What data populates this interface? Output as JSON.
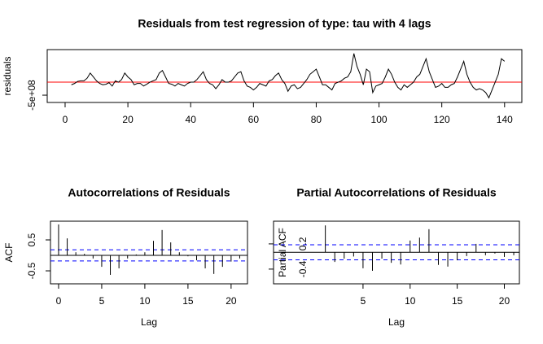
{
  "chart_data": [
    {
      "type": "line",
      "title": "Residuals from test regression of type: tau  with 4 lags",
      "ylabel": "residuals",
      "x": [
        2,
        3,
        4,
        5,
        6,
        7,
        8,
        9,
        10,
        11,
        12,
        13,
        14,
        15,
        16,
        17,
        18,
        19,
        20,
        21,
        22,
        23,
        24,
        25,
        26,
        27,
        28,
        29,
        30,
        31,
        32,
        33,
        34,
        35,
        36,
        37,
        38,
        39,
        40,
        41,
        42,
        43,
        44,
        45,
        46,
        47,
        48,
        49,
        50,
        51,
        52,
        53,
        54,
        55,
        56,
        57,
        58,
        59,
        60,
        61,
        62,
        63,
        64,
        65,
        66,
        67,
        68,
        69,
        70,
        71,
        72,
        73,
        74,
        75,
        76,
        77,
        78,
        79,
        80,
        81,
        82,
        83,
        84,
        85,
        86,
        87,
        88,
        89,
        90,
        91,
        92,
        93,
        94,
        95,
        96,
        97,
        98,
        99,
        100,
        101,
        102,
        103,
        104,
        105,
        106,
        107,
        108,
        109,
        110,
        111,
        112,
        113,
        114,
        115,
        116,
        117,
        118,
        119,
        120,
        121,
        122,
        123,
        124,
        125,
        126,
        127,
        128,
        129,
        130,
        131,
        132,
        133,
        134,
        135,
        136,
        137,
        138,
        139,
        140
      ],
      "values": [
        -100000000.0,
        -50000000.0,
        30000000.0,
        50000000.0,
        50000000.0,
        150000000.0,
        350000000.0,
        200000000.0,
        50000000.0,
        -50000000.0,
        -100000000.0,
        -80000000.0,
        -20000000.0,
        -150000000.0,
        50000000.0,
        0,
        100000000.0,
        350000000.0,
        200000000.0,
        100000000.0,
        -100000000.0,
        -50000000.0,
        -50000000.0,
        -150000000.0,
        -80000000.0,
        0,
        50000000.0,
        100000000.0,
        350000000.0,
        450000000.0,
        200000000.0,
        -50000000.0,
        -80000000.0,
        -150000000.0,
        -50000000.0,
        -100000000.0,
        -150000000.0,
        -50000000.0,
        0,
        0,
        100000000.0,
        250000000.0,
        400000000.0,
        100000000.0,
        -50000000.0,
        -100000000.0,
        -250000000.0,
        -100000000.0,
        100000000.0,
        0,
        0,
        50000000.0,
        200000000.0,
        350000000.0,
        400000000.0,
        50000000.0,
        -150000000.0,
        -200000000.0,
        -300000000.0,
        -200000000.0,
        -50000000.0,
        -100000000.0,
        -150000000.0,
        50000000.0,
        100000000.0,
        250000000.0,
        350000000.0,
        100000000.0,
        -50000000.0,
        -350000000.0,
        -150000000.0,
        -100000000.0,
        -250000000.0,
        -200000000.0,
        -50000000.0,
        100000000.0,
        300000000.0,
        400000000.0,
        500000000.0,
        200000000.0,
        -100000000.0,
        -100000000.0,
        -200000000.0,
        -300000000.0,
        -50000000.0,
        0,
        50000000.0,
        150000000.0,
        200000000.0,
        400000000.0,
        1100000000.0,
        600000000.0,
        300000000.0,
        -100000000.0,
        500000000.0,
        400000000.0,
        -400000000.0,
        -150000000.0,
        -100000000.0,
        -50000000.0,
        200000000.0,
        500000000.0,
        300000000.0,
        0,
        -200000000.0,
        -300000000.0,
        -100000000.0,
        -200000000.0,
        -100000000.0,
        0,
        200000000.0,
        300000000.0,
        600000000.0,
        900000000.0,
        400000000.0,
        100000000.0,
        -200000000.0,
        -150000000.0,
        -50000000.0,
        -200000000.0,
        -200000000.0,
        -100000000.0,
        -50000000.0,
        200000000.0,
        500000000.0,
        800000000.0,
        300000000.0,
        0,
        -200000000.0,
        -300000000.0,
        -250000000.0,
        -300000000.0,
        -400000000.0,
        -600000000.0,
        -300000000.0,
        0,
        300000000.0,
        900000000.0,
        800000000.0
      ],
      "color": "#000000",
      "reference_line": 0,
      "reference_color": "#ff0000",
      "xlim": [
        -5.7,
        145.5
      ],
      "xticks": [
        0,
        20,
        40,
        60,
        80,
        100,
        120,
        140
      ],
      "ylim": [
        -780000000,
        1250000000
      ],
      "yticks": [
        {
          "value": -500000000,
          "label": "-5e+08"
        }
      ]
    },
    {
      "type": "stem",
      "title": "Autocorrelations of Residuals",
      "xlabel": "Lag",
      "ylabel": "ACF",
      "x": [
        0,
        1,
        2,
        3,
        4,
        5,
        6,
        7,
        8,
        9,
        10,
        11,
        12,
        13,
        14,
        15,
        16,
        17,
        18,
        19,
        20,
        21
      ],
      "values": [
        1.0,
        0.55,
        0.1,
        0.05,
        -0.1,
        -0.37,
        -0.63,
        -0.42,
        -0.1,
        0.03,
        0.1,
        0.47,
        0.82,
        0.42,
        0.1,
        -0.03,
        -0.16,
        -0.42,
        -0.6,
        -0.37,
        -0.2,
        -0.1
      ],
      "color": "#000000",
      "ci": 0.18,
      "ci_color": "#0000ff",
      "xlim": [
        -0.94,
        21.9
      ],
      "xticks": [
        0,
        5,
        10,
        15,
        20
      ],
      "ylim": [
        -0.92,
        1.105
      ],
      "yticks": [
        -0.5,
        0.5
      ]
    },
    {
      "type": "stem",
      "title": "Partial Autocorrelations of Residuals",
      "xlabel": "Lag",
      "ylabel": "Partial ACF",
      "x": [
        1,
        2,
        3,
        4,
        5,
        6,
        7,
        8,
        9,
        10,
        11,
        12,
        13,
        14,
        15,
        16,
        17,
        18,
        19,
        20,
        21
      ],
      "values": [
        0.64,
        -0.23,
        -0.15,
        -0.1,
        -0.38,
        -0.44,
        -0.15,
        -0.25,
        -0.29,
        0.28,
        0.35,
        0.55,
        -0.3,
        -0.34,
        -0.19,
        -0.09,
        0.2,
        -0.07,
        -0.03,
        -0.11,
        -0.07
      ],
      "color": "#000000",
      "ci": 0.18,
      "ci_color": "#0000ff",
      "xlim": [
        -4.5,
        21.6
      ],
      "xticks": [
        5,
        10,
        15,
        20
      ],
      "ylim": [
        -0.75,
        0.74
      ],
      "yticks": [
        -0.4,
        0.2
      ]
    }
  ]
}
